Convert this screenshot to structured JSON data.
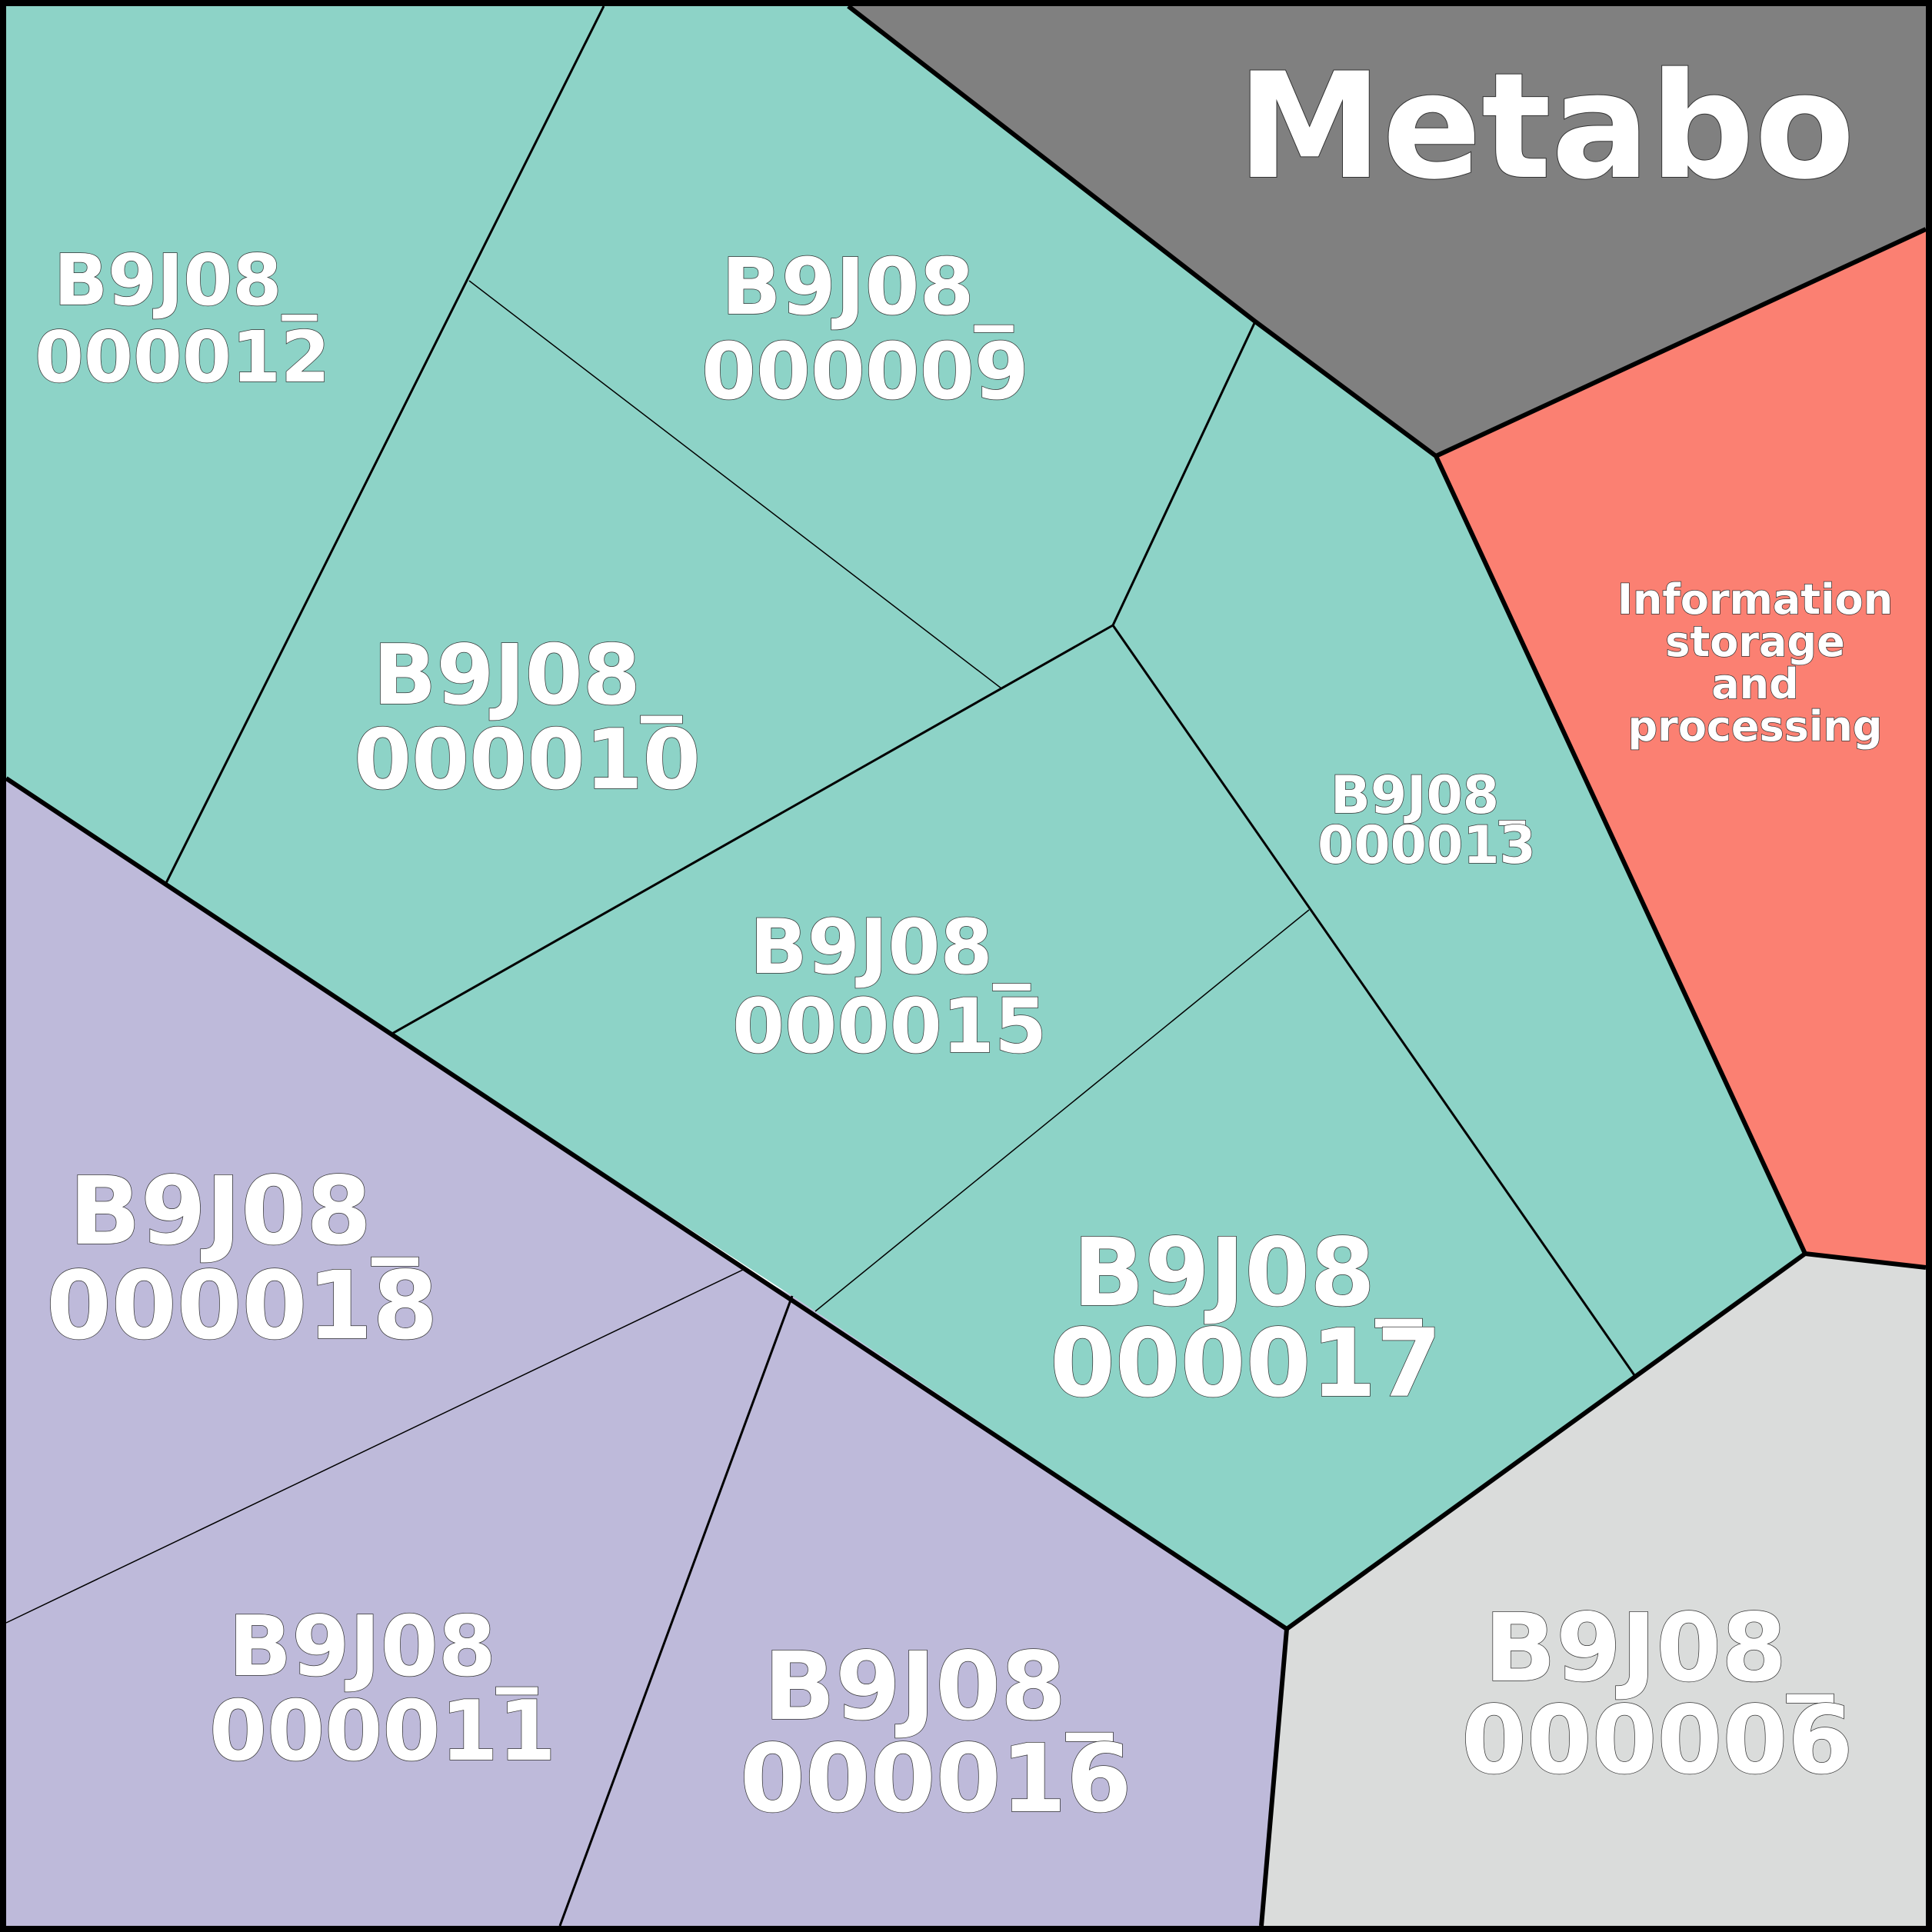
{
  "title": "Metabo",
  "colors": {
    "teal": "#8dd3c7",
    "lavender": "#bebada",
    "salmon": "#fb8072",
    "gray": "#808080",
    "light_gray": "#dadcdb",
    "border": "#000000",
    "label": "#ffffff"
  },
  "regions": {
    "info_storage": {
      "lines": [
        "Information",
        "storage",
        "and",
        "processing"
      ]
    }
  },
  "cells": {
    "c12": {
      "line1": "B9J08_",
      "line2": "000012"
    },
    "c09": {
      "line1": "B9J08_",
      "line2": "000009"
    },
    "c10": {
      "line1": "B9J08_",
      "line2": "000010"
    },
    "c13": {
      "line1": "B9J08_",
      "line2": "000013"
    },
    "c15": {
      "line1": "B9J08_",
      "line2": "000015"
    },
    "c17": {
      "line1": "B9J08_",
      "line2": "000017"
    },
    "c18": {
      "line1": "B9J08_",
      "line2": "000018"
    },
    "c11": {
      "line1": "B9J08_",
      "line2": "000011"
    },
    "c16": {
      "line1": "B9J08_",
      "line2": "000016"
    },
    "c06": {
      "line1": "B9J08_",
      "line2": "000006"
    }
  }
}
